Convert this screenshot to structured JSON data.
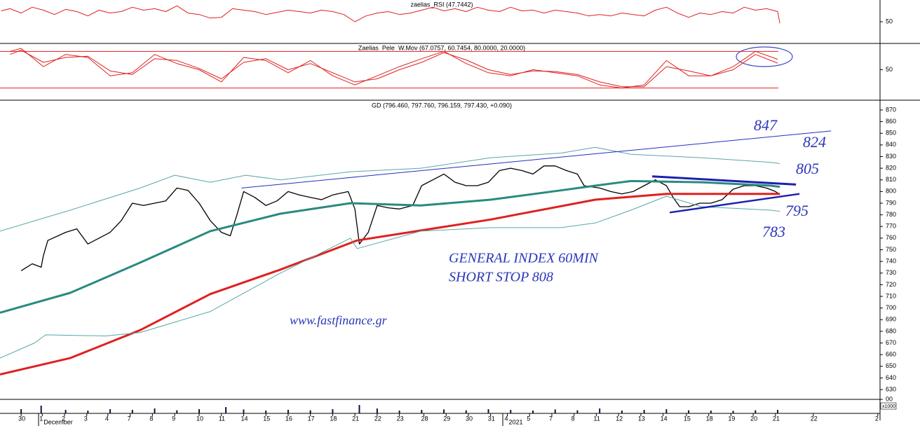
{
  "chart_data": [
    {
      "type": "line",
      "title": "zaelias_RSI (47.7442)",
      "ylim": [
        20,
        80
      ],
      "yticks": [
        50
      ],
      "series": [
        {
          "color": "#e02020",
          "x": [
            -0.9,
            -0.5,
            0,
            0.5,
            1,
            1.5,
            2,
            2.5,
            3,
            3.5,
            4,
            4.5,
            5,
            5.5,
            6,
            6.5,
            7,
            7.5,
            8,
            8.5,
            9,
            9.5,
            10,
            10.5,
            11,
            11.5,
            12,
            12.5,
            13,
            13.5,
            14,
            14.5,
            15,
            15.5,
            16,
            16.5,
            17,
            17.5,
            18,
            18.5,
            19,
            19.5,
            20,
            20.5,
            21,
            21.5,
            22,
            22.5,
            23,
            23.5,
            24,
            24.5,
            25,
            25.5,
            26,
            26.5,
            27,
            27.5,
            28,
            28.5,
            29,
            29.5,
            30,
            30.5,
            31,
            31.5,
            32,
            32.5,
            33,
            33.5,
            34,
            34.1
          ],
          "values": [
            65,
            68,
            62,
            70,
            66,
            60,
            67,
            64,
            58,
            66,
            62,
            64,
            70,
            66,
            68,
            64,
            72,
            62,
            60,
            55,
            56,
            68,
            66,
            64,
            60,
            63,
            66,
            64,
            62,
            66,
            64,
            60,
            50,
            58,
            62,
            64,
            60,
            62,
            66,
            70,
            65,
            68,
            64,
            70,
            66,
            64,
            70,
            65,
            66,
            62,
            66,
            64,
            62,
            58,
            60,
            58,
            62,
            60,
            58,
            66,
            70,
            62,
            56,
            62,
            60,
            64,
            62,
            70,
            66,
            68,
            64,
            47.7442
          ]
        }
      ]
    },
    {
      "type": "line",
      "title": "Zaelias_Pele_W.Mov (67.0757, 60.7454, 80.0000, 20.0000)",
      "ylim": [
        0,
        93
      ],
      "yticks": [
        50
      ],
      "levels": [
        80,
        20
      ],
      "level_color": "#e02020",
      "series": [
        {
          "color": "#e02020",
          "x": [
            -0.5,
            0,
            1,
            2,
            3,
            4,
            5,
            6,
            7,
            8,
            9,
            10,
            11,
            12,
            13,
            14,
            15,
            16,
            17,
            18,
            19,
            20,
            21,
            22,
            23,
            24,
            25,
            26,
            27,
            28,
            29,
            30,
            31,
            32,
            33,
            34
          ],
          "values": [
            80,
            85,
            55,
            75,
            70,
            40,
            45,
            75,
            60,
            50,
            30,
            70,
            65,
            45,
            65,
            40,
            25,
            40,
            55,
            68,
            80,
            60,
            45,
            40,
            50,
            45,
            40,
            25,
            20,
            25,
            65,
            40,
            40,
            55,
            80,
            67.0757
          ]
        },
        {
          "color": "#e02020",
          "x": [
            -0.5,
            0,
            1,
            2,
            3,
            4,
            5,
            6,
            7,
            8,
            9,
            10,
            11,
            12,
            13,
            14,
            15,
            16,
            17,
            18,
            19,
            20,
            21,
            22,
            23,
            24,
            25,
            26,
            27,
            28,
            29,
            30,
            31,
            32,
            33,
            34
          ],
          "values": [
            75,
            82,
            62,
            70,
            72,
            48,
            42,
            68,
            65,
            52,
            35,
            62,
            68,
            50,
            60,
            45,
            30,
            35,
            50,
            62,
            78,
            66,
            50,
            42,
            48,
            47,
            42,
            30,
            22,
            22,
            55,
            48,
            40,
            50,
            75,
            60.7454
          ]
        }
      ]
    },
    {
      "type": "line",
      "title": "GD (796.460, 797.760, 796.159, 797.430, +0.090)",
      "ylim": [
        621.6,
        878.4
      ],
      "yticks": [
        630,
        640,
        650,
        660,
        670,
        680,
        690,
        700,
        710,
        720,
        730,
        740,
        750,
        760,
        770,
        780,
        790,
        800,
        810,
        820,
        830,
        840,
        850,
        860,
        870
      ],
      "xlim": [
        -0.95,
        38.6
      ],
      "xticks": [
        {
          "value": 0,
          "label": "30"
        },
        {
          "value": 0.95,
          "label": "1"
        },
        {
          "value": 1.95,
          "label": "2"
        },
        {
          "value": 2.95,
          "label": "3"
        },
        {
          "value": 3.9,
          "label": "4"
        },
        {
          "value": 4.9,
          "label": "7"
        },
        {
          "value": 5.9,
          "label": "8"
        },
        {
          "value": 6.9,
          "label": "9"
        },
        {
          "value": 8,
          "label": "10"
        },
        {
          "value": 9,
          "label": "11"
        },
        {
          "value": 10,
          "label": "14"
        },
        {
          "value": 11,
          "label": "15"
        },
        {
          "value": 12,
          "label": "16"
        },
        {
          "value": 13,
          "label": "17"
        },
        {
          "value": 14,
          "label": "18"
        },
        {
          "value": 15,
          "label": "21"
        },
        {
          "value": 16,
          "label": "22"
        },
        {
          "value": 17,
          "label": "23"
        },
        {
          "value": 18.1,
          "label": "28"
        },
        {
          "value": 19.1,
          "label": "29"
        },
        {
          "value": 20.1,
          "label": "30"
        },
        {
          "value": 21.1,
          "label": "31"
        },
        {
          "value": 21.85,
          "label": "4"
        },
        {
          "value": 22.85,
          "label": "5"
        },
        {
          "value": 23.85,
          "label": "7"
        },
        {
          "value": 24.85,
          "label": "8"
        },
        {
          "value": 25.85,
          "label": "11"
        },
        {
          "value": 26.85,
          "label": "12"
        },
        {
          "value": 27.85,
          "label": "13"
        },
        {
          "value": 28.85,
          "label": "14"
        },
        {
          "value": 29.9,
          "label": "15"
        },
        {
          "value": 30.9,
          "label": "18"
        },
        {
          "value": 31.9,
          "label": "19"
        },
        {
          "value": 32.9,
          "label": "20"
        },
        {
          "value": 33.9,
          "label": "21"
        },
        {
          "value": 35.6,
          "label": "22"
        },
        {
          "value": 38.5,
          "label": "2"
        }
      ],
      "x_group_labels": [
        {
          "value": 0.95,
          "label": "December"
        },
        {
          "value": 21.85,
          "label": "2021"
        }
      ],
      "series": [
        {
          "color": "#000000",
          "width": 1.3,
          "x": [
            0,
            0.5,
            0.9,
            1,
            1.2,
            2,
            2.5,
            3,
            3.5,
            4,
            4.5,
            5,
            5.5,
            6,
            6.5,
            7,
            7.5,
            8,
            8.5,
            9,
            9.4,
            9.7,
            10,
            10.5,
            11,
            11.5,
            12,
            12.5,
            13,
            13.5,
            14,
            14.7,
            15,
            15.2,
            15.6,
            16,
            16.5,
            17,
            17.6,
            18,
            18.5,
            19,
            19.5,
            20,
            20.5,
            21,
            21.5,
            22,
            22.5,
            23,
            23.5,
            24,
            24.5,
            25,
            25.3,
            26,
            26.5,
            27,
            27.5,
            28,
            28.5,
            29,
            29.3,
            29.6,
            30,
            30.5,
            31,
            31.5,
            32,
            32.5,
            33,
            33.5,
            33.9,
            34.1
          ],
          "values": [
            732,
            738,
            735,
            745,
            758,
            765,
            768,
            755,
            760,
            765,
            775,
            790,
            788,
            790,
            792,
            803,
            801,
            790,
            775,
            765,
            762,
            780,
            800,
            795,
            788,
            792,
            800,
            797,
            795,
            793,
            797,
            800,
            785,
            755,
            765,
            788,
            786,
            785,
            788,
            805,
            810,
            815,
            808,
            805,
            805,
            808,
            818,
            820,
            818,
            815,
            822,
            822,
            818,
            815,
            805,
            803,
            800,
            798,
            800,
            805,
            810,
            805,
            795,
            787,
            787,
            790,
            790,
            793,
            802,
            805,
            805,
            803,
            800,
            797.43
          ]
        },
        {
          "color": "#2a8a80",
          "width": 3,
          "x": [
            -0.95,
            2.2,
            5.35,
            8.5,
            11.65,
            14.8,
            17.96,
            21.1,
            24.26,
            25.8,
            27.4,
            30.57,
            33.7,
            34.1
          ],
          "values": [
            696,
            713,
            739,
            766,
            781,
            790,
            788,
            793,
            801,
            805,
            809,
            808,
            805,
            804
          ]
        },
        {
          "color": "#e02020",
          "width": 3,
          "x": [
            -0.95,
            2.2,
            5.35,
            8.5,
            11.65,
            15.1,
            21.1,
            25.8,
            29,
            31,
            34.1
          ],
          "values": [
            643,
            657,
            681,
            712,
            733,
            758,
            776,
            793,
            798,
            798,
            798
          ]
        },
        {
          "color": "#5aa6a6",
          "width": 1,
          "x": [
            -0.95,
            2.2,
            5.35,
            6.9,
            8.5,
            10.1,
            11.65,
            14.8,
            17.96,
            21.1,
            24.26,
            25.8,
            27.4,
            30.57,
            33.7,
            34.1
          ],
          "values": [
            766,
            784,
            803,
            814,
            808,
            814,
            810,
            817,
            820,
            829,
            833,
            838,
            832,
            829,
            825,
            824
          ]
        },
        {
          "color": "#5aa6a6",
          "width": 1,
          "x": [
            -0.95,
            0.6,
            1.1,
            3.8,
            5.35,
            8.5,
            11.65,
            14.8,
            15.1,
            17.96,
            21.1,
            24.26,
            25.8,
            27.4,
            29,
            30.57,
            33.7,
            34.1
          ],
          "values": [
            657,
            670,
            677,
            676,
            679,
            697,
            730,
            760,
            751,
            766,
            769,
            769,
            773,
            784,
            796,
            787,
            784,
            783
          ]
        },
        {
          "color": "#2030c0",
          "width": 1,
          "x": [
            9.9,
            36.4
          ],
          "values": [
            803,
            852
          ]
        },
        {
          "color": "#1a20b0",
          "width": 3,
          "x": [
            28.36,
            34.82
          ],
          "values": [
            813,
            806
          ]
        },
        {
          "color": "#1a20b0",
          "width": 2.5,
          "x": [
            29.15,
            34.98
          ],
          "values": [
            782,
            798
          ]
        }
      ],
      "annotations": [
        "847",
        "824",
        "805",
        "795",
        "783",
        "GENERAL INDEX 60MIN",
        "SHORT STOP 808",
        "www.fastfinance.gr"
      ]
    },
    {
      "type": "bar",
      "unit_label": "x1000",
      "ylim": [
        0,
        100
      ],
      "yticks": [
        {
          "value": 100,
          "label": "00"
        }
      ],
      "color": "#101040",
      "x": [
        0,
        0.9,
        2,
        3,
        4,
        5,
        6,
        7,
        8,
        9.2,
        10,
        11,
        12,
        13,
        14,
        15.2,
        16,
        17,
        18,
        19,
        20,
        21,
        22,
        23,
        24,
        25,
        26,
        27,
        28,
        29,
        30,
        31,
        32,
        33,
        34
      ],
      "values": [
        30,
        55,
        25,
        20,
        30,
        25,
        35,
        22,
        30,
        45,
        28,
        20,
        25,
        22,
        30,
        60,
        35,
        20,
        25,
        28,
        22,
        30,
        25,
        20,
        28,
        22,
        35,
        20,
        25,
        30,
        22,
        20,
        18,
        22,
        25
      ]
    }
  ]
}
